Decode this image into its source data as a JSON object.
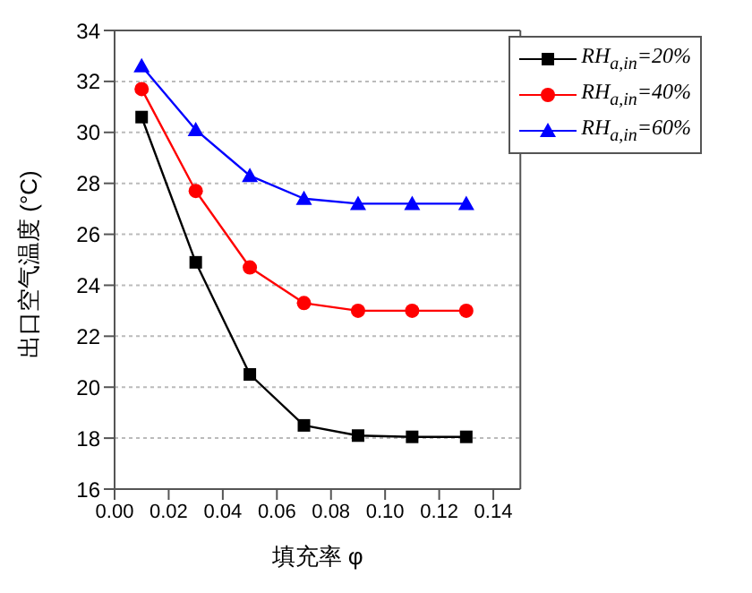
{
  "chart_data": {
    "type": "line",
    "xlabel": "填充率 φ",
    "ylabel": "出口空气温度 (°C)",
    "x": [
      0.01,
      0.03,
      0.05,
      0.07,
      0.09,
      0.11,
      0.13
    ],
    "xlim": [
      0,
      0.15
    ],
    "xticks": [
      {
        "value": 0,
        "label": "0.00"
      },
      {
        "value": 0.02,
        "label": "0.02"
      },
      {
        "value": 0.04,
        "label": "0.04"
      },
      {
        "value": 0.06,
        "label": "0.06"
      },
      {
        "value": 0.08,
        "label": "0.08"
      },
      {
        "value": 0.1,
        "label": "0.10"
      },
      {
        "value": 0.12,
        "label": "0.12"
      },
      {
        "value": 0.14,
        "label": "0.14"
      }
    ],
    "ylim": [
      16,
      34
    ],
    "yticks": [
      16,
      18,
      20,
      22,
      24,
      26,
      28,
      30,
      32,
      34
    ],
    "grid": "y",
    "legend": "top right",
    "series": [
      {
        "name": "RH$_{a,in}$=20%",
        "color": "#000000",
        "marker": "square",
        "values": [
          30.6,
          24.9,
          20.5,
          18.5,
          18.1,
          18.05,
          18.05
        ]
      },
      {
        "name": "RH$_{a,in}$=40%",
        "color": "#ff0000",
        "marker": "circle",
        "values": [
          31.7,
          27.7,
          24.7,
          23.3,
          23.0,
          23.0,
          23.0
        ]
      },
      {
        "name": "RH$_{a,in}$=60%",
        "color": "#0000ff",
        "marker": "triangle",
        "values": [
          32.6,
          30.1,
          28.3,
          27.4,
          27.2,
          27.2,
          27.2
        ]
      }
    ]
  }
}
